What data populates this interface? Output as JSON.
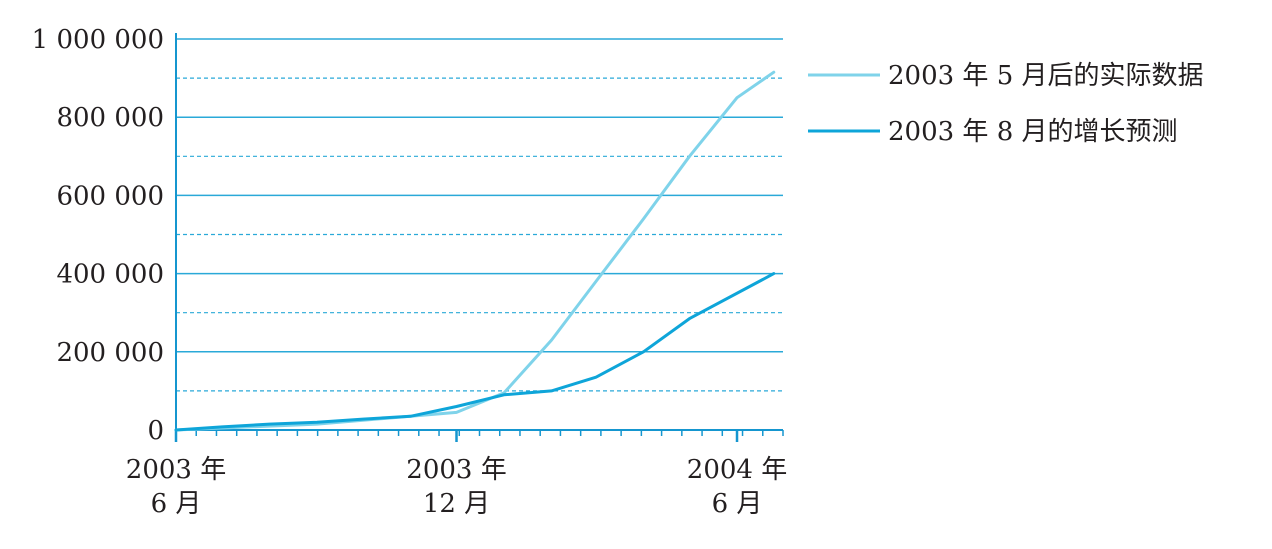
{
  "chart_data": {
    "type": "line",
    "title": "",
    "xlabel": "",
    "ylabel": "",
    "ylim": [
      0,
      1000000
    ],
    "y_ticks": [
      {
        "value": 0,
        "label": "0"
      },
      {
        "value": 200000,
        "label": "200 000"
      },
      {
        "value": 400000,
        "label": "400 000"
      },
      {
        "value": 600000,
        "label": "600 000"
      },
      {
        "value": 800000,
        "label": "800 000"
      },
      {
        "value": 1000000,
        "label": "1 000 000"
      }
    ],
    "y_minor_grid": [
      100000,
      300000,
      500000,
      700000,
      900000
    ],
    "x_range": [
      "2003-06",
      "2004-07"
    ],
    "x_ticks": [
      {
        "value": "2003-06",
        "line1": "2003 年",
        "line2": "6 月"
      },
      {
        "value": "2003-12",
        "line1": "2003 年",
        "line2": "12 月"
      },
      {
        "value": "2004-06",
        "line1": "2004 年",
        "line2": "6 月"
      }
    ],
    "grid": true,
    "legend_position": "top-right",
    "series": [
      {
        "name": "2003 年 5 月后的实际数据",
        "color": "#7fd3ea",
        "points": [
          {
            "x": "2003-06-01",
            "y": 0
          },
          {
            "x": "2003-07-01",
            "y": 5000
          },
          {
            "x": "2003-08-01",
            "y": 10000
          },
          {
            "x": "2003-09-01",
            "y": 15000
          },
          {
            "x": "2003-10-01",
            "y": 25000
          },
          {
            "x": "2003-11-01",
            "y": 35000
          },
          {
            "x": "2003-12-01",
            "y": 45000
          },
          {
            "x": "2004-01-01",
            "y": 95000
          },
          {
            "x": "2004-02-01",
            "y": 230000
          },
          {
            "x": "2004-03-01",
            "y": 380000
          },
          {
            "x": "2004-04-01",
            "y": 540000
          },
          {
            "x": "2004-05-01",
            "y": 700000
          },
          {
            "x": "2004-06-01",
            "y": 850000
          },
          {
            "x": "2004-06-25",
            "y": 915000
          }
        ]
      },
      {
        "name": "2003 年 8 月的增长预测",
        "color": "#0ea5d9",
        "points": [
          {
            "x": "2003-06-01",
            "y": 0
          },
          {
            "x": "2003-07-01",
            "y": 8000
          },
          {
            "x": "2003-08-01",
            "y": 15000
          },
          {
            "x": "2003-09-01",
            "y": 20000
          },
          {
            "x": "2003-10-01",
            "y": 28000
          },
          {
            "x": "2003-11-01",
            "y": 35000
          },
          {
            "x": "2003-12-01",
            "y": 60000
          },
          {
            "x": "2004-01-01",
            "y": 90000
          },
          {
            "x": "2004-02-01",
            "y": 100000
          },
          {
            "x": "2004-03-01",
            "y": 135000
          },
          {
            "x": "2004-04-01",
            "y": 200000
          },
          {
            "x": "2004-05-01",
            "y": 285000
          },
          {
            "x": "2004-06-25",
            "y": 400000
          }
        ]
      }
    ]
  }
}
